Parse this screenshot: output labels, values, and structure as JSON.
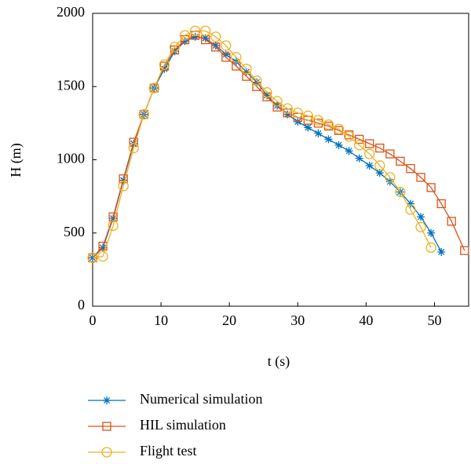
{
  "chart_data": {
    "type": "line",
    "xlabel": "t (s)",
    "ylabel": "H (m)",
    "xlim": [
      0,
      55
    ],
    "xticks": [
      0,
      10,
      20,
      30,
      40,
      50
    ],
    "ylim": [
      0,
      2000
    ],
    "yticks": [
      0,
      500,
      1000,
      1500,
      2000
    ],
    "series": [
      {
        "name": "Numerical simulation",
        "color": "#0072bd",
        "marker": "star",
        "x": [
          0,
          1.5,
          3,
          4.5,
          6,
          7.5,
          9,
          10.5,
          12,
          13.5,
          15,
          16.5,
          18,
          19.5,
          21,
          22.5,
          24,
          25.5,
          27,
          28.5,
          30,
          31.5,
          33,
          34.5,
          36,
          37.5,
          39,
          40.5,
          42,
          43.5,
          45,
          46.5,
          48,
          49.5,
          51
        ],
        "values": [
          330,
          400,
          600,
          860,
          1110,
          1310,
          1490,
          1620,
          1740,
          1810,
          1840,
          1830,
          1780,
          1720,
          1670,
          1600,
          1530,
          1440,
          1370,
          1310,
          1260,
          1220,
          1180,
          1140,
          1100,
          1060,
          1010,
          960,
          910,
          850,
          780,
          700,
          610,
          500,
          370
        ]
      },
      {
        "name": "HIL simulation",
        "color": "#d95319",
        "marker": "square",
        "x": [
          0,
          1.5,
          3,
          4.5,
          6,
          7.5,
          9,
          10.5,
          12,
          13.5,
          15,
          16.5,
          18,
          19.5,
          21,
          22.5,
          24,
          25.5,
          27,
          28.5,
          30,
          31.5,
          33,
          34.5,
          36,
          37.5,
          39,
          40.5,
          42,
          43.5,
          45,
          46.5,
          48,
          49.5,
          51,
          52.5,
          54.4
        ],
        "values": [
          330,
          410,
          610,
          870,
          1120,
          1310,
          1490,
          1640,
          1750,
          1820,
          1850,
          1820,
          1770,
          1700,
          1640,
          1570,
          1500,
          1430,
          1360,
          1320,
          1290,
          1270,
          1250,
          1230,
          1200,
          1170,
          1140,
          1110,
          1080,
          1040,
          990,
          940,
          880,
          810,
          700,
          580,
          380
        ]
      },
      {
        "name": "Flight test",
        "color": "#edb120",
        "marker": "circle",
        "x": [
          0,
          1.5,
          3,
          4.5,
          6,
          7.5,
          9,
          10.5,
          12,
          13.5,
          15,
          16.5,
          18,
          19.5,
          21,
          22.5,
          24,
          25.5,
          27,
          28.5,
          30,
          31.5,
          33,
          34.5,
          36,
          37.5,
          39,
          40.5,
          42,
          43.5,
          45,
          46.5,
          48,
          49.5
        ],
        "values": [
          330,
          340,
          550,
          820,
          1080,
          1310,
          1490,
          1650,
          1770,
          1850,
          1880,
          1880,
          1840,
          1780,
          1700,
          1620,
          1540,
          1460,
          1400,
          1350,
          1320,
          1300,
          1270,
          1240,
          1210,
          1160,
          1100,
          1040,
          960,
          880,
          780,
          660,
          540,
          400
        ]
      }
    ]
  }
}
